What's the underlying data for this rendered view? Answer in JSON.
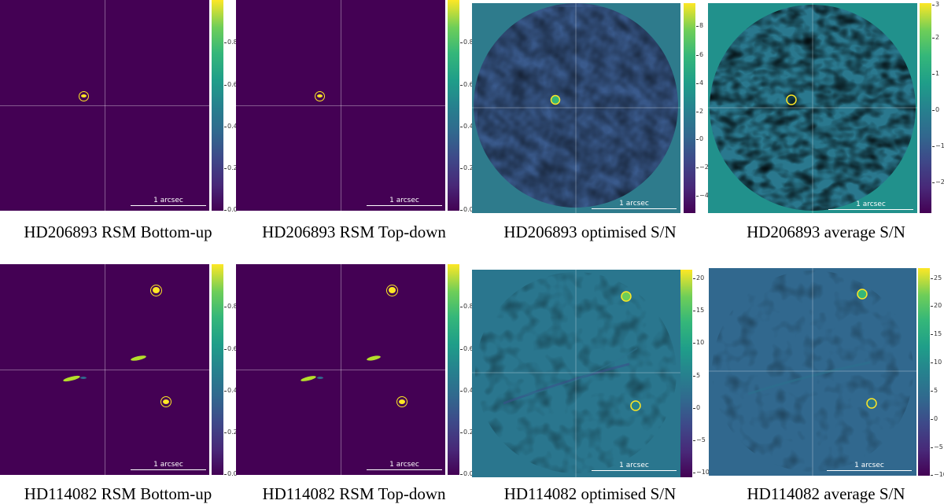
{
  "figure": {
    "colormap_colors": [
      "#440154",
      "#3e4989",
      "#26828e",
      "#35b779",
      "#fde725"
    ],
    "background_rsm": "#440154",
    "background_snr": "#2e7b8c",
    "circle_color": "#fde725",
    "scalebar_label": "1 arcsec",
    "rows": [
      {
        "target": "HD206893",
        "panels": [
          {
            "caption": "HD206893 RSM Bottom-up",
            "ticks": [
              "0.8",
              "0.6",
              "0.4",
              "0.2",
              "0.0"
            ]
          },
          {
            "caption": "HD206893 RSM Top-down",
            "ticks": [
              "0.8",
              "0.6",
              "0.4",
              "0.2",
              "0.0"
            ]
          },
          {
            "caption": "HD206893 optimised S/N",
            "ticks": [
              "8",
              "6",
              "4",
              "2",
              "0",
              "−2",
              "−4"
            ]
          },
          {
            "caption": "HD206893 average S/N",
            "ticks": [
              "3",
              "2",
              "1",
              "0",
              "−1",
              "−2"
            ]
          }
        ]
      },
      {
        "target": "HD114082",
        "panels": [
          {
            "caption": "HD114082 RSM Bottom-up",
            "ticks": [
              "0.8",
              "0.6",
              "0.4",
              "0.2",
              "0.0"
            ]
          },
          {
            "caption": "HD114082 RSM Top-down",
            "ticks": [
              "0.8",
              "0.6",
              "0.4",
              "0.2",
              "0.0"
            ]
          },
          {
            "caption": "HD114082 optimised S/N",
            "ticks": [
              "20",
              "15",
              "10",
              "5",
              "0",
              "−5",
              "−10"
            ]
          },
          {
            "caption": "HD114082 average S/N",
            "ticks": [
              "25",
              "20",
              "15",
              "10",
              "5",
              "0",
              "−5",
              "−10"
            ]
          }
        ]
      }
    ]
  }
}
